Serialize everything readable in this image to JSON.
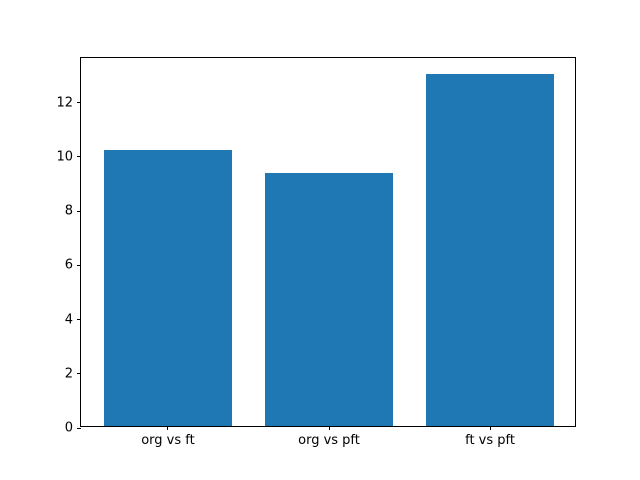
{
  "chart_data": {
    "type": "bar",
    "categories": [
      "org vs ft",
      "org vs pft",
      "ft vs pft"
    ],
    "values": [
      10.2,
      9.35,
      13.0
    ],
    "yticks": [
      0,
      2,
      4,
      6,
      8,
      10,
      12
    ],
    "ytick_labels": [
      "0",
      "2",
      "4",
      "6",
      "8",
      "10",
      "12"
    ],
    "ylim": [
      0,
      13.65
    ],
    "bar_color": "#1f77b4",
    "axis_color": "#000000",
    "background_color": "#ffffff",
    "grid": false,
    "legend": null,
    "title": "",
    "xlabel": "",
    "ylabel": ""
  }
}
